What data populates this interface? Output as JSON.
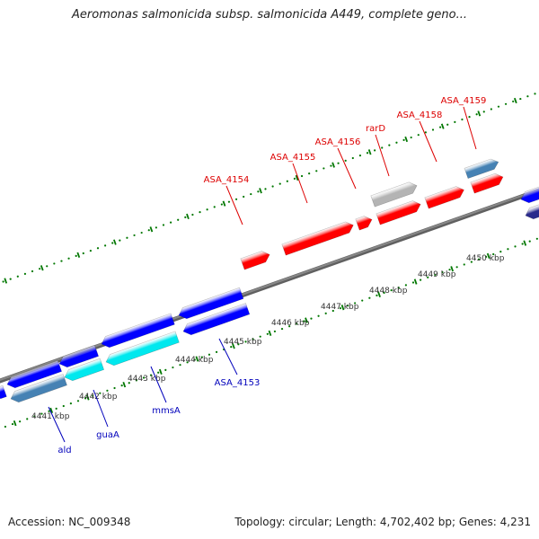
{
  "title": "Aeromonas salmonicida subsp. salmonicida A449, complete geno...",
  "footer": {
    "accession": "Accession: NC_009348",
    "summary": "Topology: circular; Length: 4,702,402 bp; Genes: 4,231"
  },
  "colors": {
    "forward_gene": "#ff0000",
    "reverse_gene": "#0000ff",
    "highlight_gene": "#00e8ee",
    "steel_gene": "#4682b4",
    "gray_gene": "#b4b4b4",
    "navy_gene": "#2a2a8c",
    "forward_label": "#dd0000",
    "reverse_label": "#0000bb",
    "tick": "#007700",
    "backbone": "#888888"
  },
  "scale_labels": [
    "4441 kbp",
    "4442 kbp",
    "4443 kbp",
    "4444 kbp",
    "4445 kbp",
    "4446 kbp",
    "4447 kbp",
    "4448 kbp",
    "4449 kbp",
    "4450 kbp"
  ],
  "forward_gene_labels": [
    "ASA_4154",
    "ASA_4155",
    "ASA_4156",
    "rarD",
    "ASA_4158",
    "ASA_4159"
  ],
  "reverse_gene_labels": [
    "ald",
    "guaA",
    "mmsA",
    "ASA_4153"
  ]
}
